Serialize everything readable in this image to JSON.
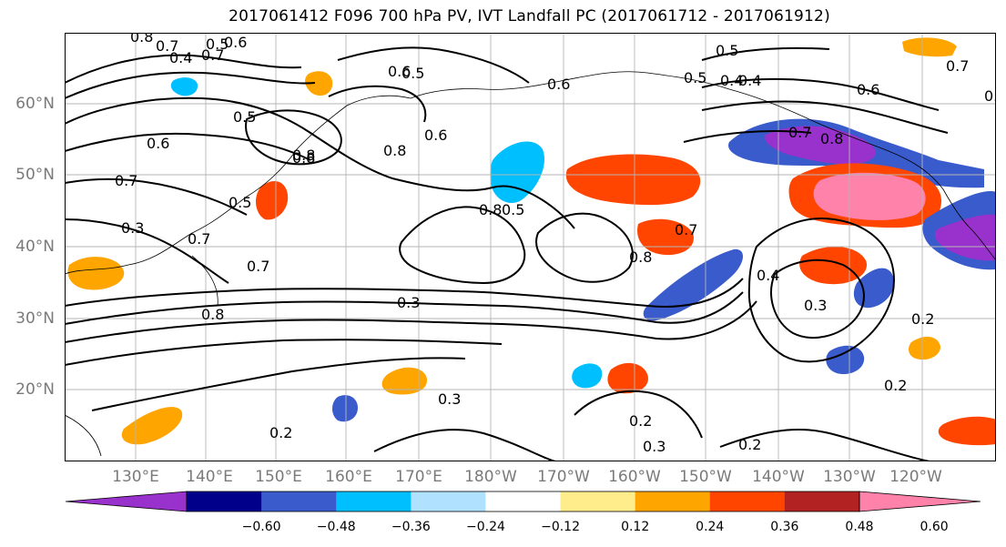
{
  "title": "2017061412 F096 700 hPa PV, IVT Landfall PC (2017061712 - 2017061912)",
  "lat_labels": [
    "60°N",
    "50°N",
    "40°N",
    "30°N",
    "20°N"
  ],
  "lon_labels": [
    "130°E",
    "140°E",
    "150°E",
    "160°E",
    "170°E",
    "180°W",
    "170°W",
    "160°W",
    "150°W",
    "140°W",
    "130°W",
    "120°W"
  ],
  "colorbar": {
    "ticks": [
      "−0.60",
      "−0.48",
      "−0.36",
      "−0.24",
      "−0.12",
      "0.12",
      "0.24",
      "0.36",
      "0.48",
      "0.60"
    ],
    "colors": [
      "#9932cc",
      "#00008b",
      "#3a5bcc",
      "#00bfff",
      "#b0e2ff",
      "#ffffff",
      "#ffec8b",
      "#ffa500",
      "#ff4500",
      "#b22222",
      "#ff82ab"
    ]
  },
  "contour_labels": [
    "0.8",
    "0.7",
    "0.5",
    "0.4",
    "0.6",
    "0.6",
    "0.8",
    "0.7",
    "0.5",
    "0.8",
    "0.5",
    "0.5",
    "0.4",
    "0.6",
    "0.7",
    "0.8",
    "0.7",
    "0.3",
    "0.6",
    "0.5",
    "0.7",
    "0.8",
    "0.3",
    "0.2",
    "0.3",
    "0.8",
    "0.7",
    "0.6",
    "0.5",
    "0.8",
    "0.4",
    "0.3",
    "0.2",
    "0.2",
    "0.2",
    "0.3",
    "0.2",
    "0.7",
    "0.8",
    "0.5",
    "0.6",
    "0.4",
    "0.7",
    "0.5"
  ]
}
